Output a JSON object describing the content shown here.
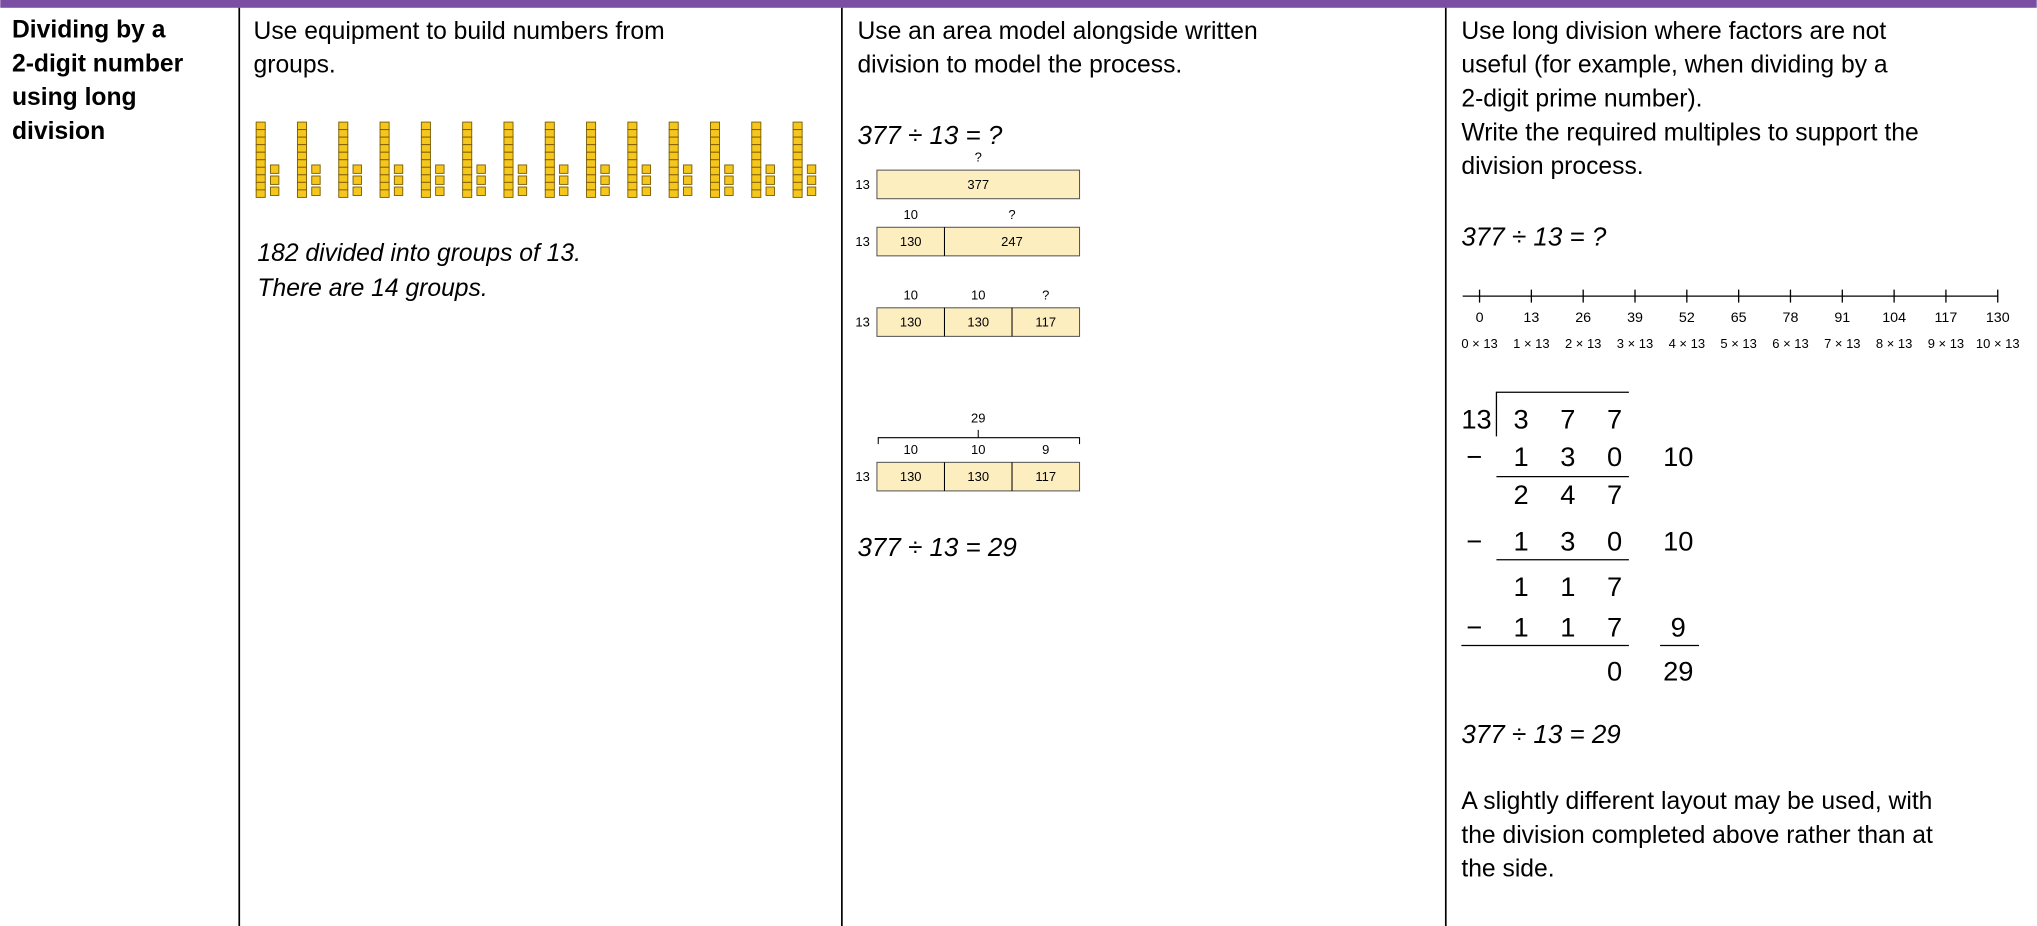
{
  "header": {
    "title_lines": [
      "Dividing by a",
      "2-digit number",
      "using long",
      "division"
    ]
  },
  "col1": {
    "intro_lines": [
      "Use equipment to build numbers from",
      "groups."
    ],
    "caption_lines": [
      "182 divided into groups of 13.",
      "There are 14 groups."
    ]
  },
  "col2": {
    "intro_lines": [
      "Use an area model alongside written",
      "division to model the process."
    ],
    "equation": "377 ÷ 13 = ?",
    "models": [
      {
        "side": "13",
        "tops": [
          "?"
        ],
        "parts": [
          "377"
        ]
      },
      {
        "side": "13",
        "tops": [
          "10",
          "?"
        ],
        "parts": [
          "130",
          "247"
        ]
      },
      {
        "side": "13",
        "tops": [
          "10",
          "10",
          "?"
        ],
        "parts": [
          "130",
          "130",
          "117"
        ]
      },
      {
        "side": "13",
        "total": "29",
        "tops": [
          "10",
          "10",
          "9"
        ],
        "parts": [
          "130",
          "130",
          "117"
        ]
      }
    ],
    "answer": "377 ÷ 13 = 29"
  },
  "col3": {
    "intro_lines": [
      "Use long division where factors are not",
      "useful (for example, when dividing by a",
      "2-digit prime number).",
      "Write the required multiples to support the",
      "division process."
    ],
    "equation": "377 ÷ 13 = ?",
    "number_line": {
      "values": [
        "0",
        "13",
        "26",
        "39",
        "52",
        "65",
        "78",
        "91",
        "104",
        "117",
        "130"
      ],
      "multiples": [
        "0 × 13",
        "1 × 13",
        "2 × 13",
        "3 × 13",
        "4 × 13",
        "5 × 13",
        "6 × 13",
        "7 × 13",
        "8 × 13",
        "9 × 13",
        "10 × 13"
      ]
    },
    "long_division": {
      "divisor": "13",
      "rows": [
        {
          "digits": [
            "3",
            "7",
            "7"
          ]
        },
        {
          "sign": "−",
          "digits": [
            "1",
            "3",
            "0"
          ],
          "side": "10"
        },
        {
          "digits": [
            "2",
            "4",
            "7"
          ]
        },
        {
          "sign": "−",
          "digits": [
            "1",
            "3",
            "0"
          ],
          "side": "10"
        },
        {
          "digits": [
            "1",
            "1",
            "7"
          ]
        },
        {
          "sign": "−",
          "digits": [
            "1",
            "1",
            "7"
          ],
          "side": "9"
        },
        {
          "digits": [
            "",
            "",
            "0"
          ],
          "side": "29"
        }
      ]
    },
    "answer": "377 ÷ 13 = 29",
    "closing_lines": [
      "A slightly different layout may be used, with",
      "the division completed above rather than at",
      "the side."
    ]
  }
}
